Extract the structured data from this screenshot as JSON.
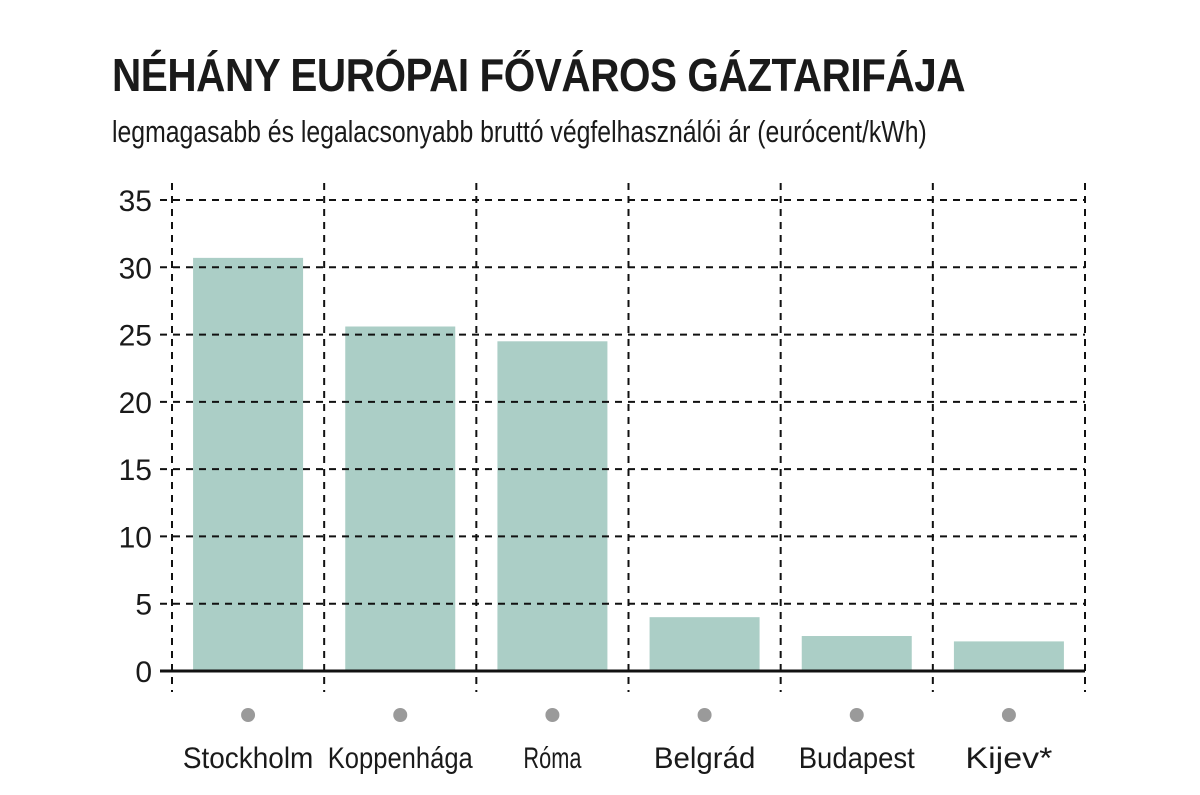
{
  "chart_data": {
    "type": "bar",
    "title": "NÉHÁNY EURÓPAI FŐVÁROS GÁZTARIFÁJA",
    "subtitle": "legmagasabb és legalacsonyabb bruttó végfelhasználói ár (eurócent/kWh)",
    "categories": [
      "Stockholm",
      "Koppenhága",
      "Róma",
      "Belgrád",
      "Budapest",
      "Kijev*"
    ],
    "values": [
      30.7,
      25.6,
      24.5,
      4.0,
      2.6,
      2.2
    ],
    "xlabel": "",
    "ylabel": "",
    "ylim": [
      0,
      35
    ],
    "yticks": [
      0,
      5,
      10,
      15,
      20,
      25,
      30,
      35
    ],
    "grid": true,
    "bar_color": "#abcec6"
  }
}
